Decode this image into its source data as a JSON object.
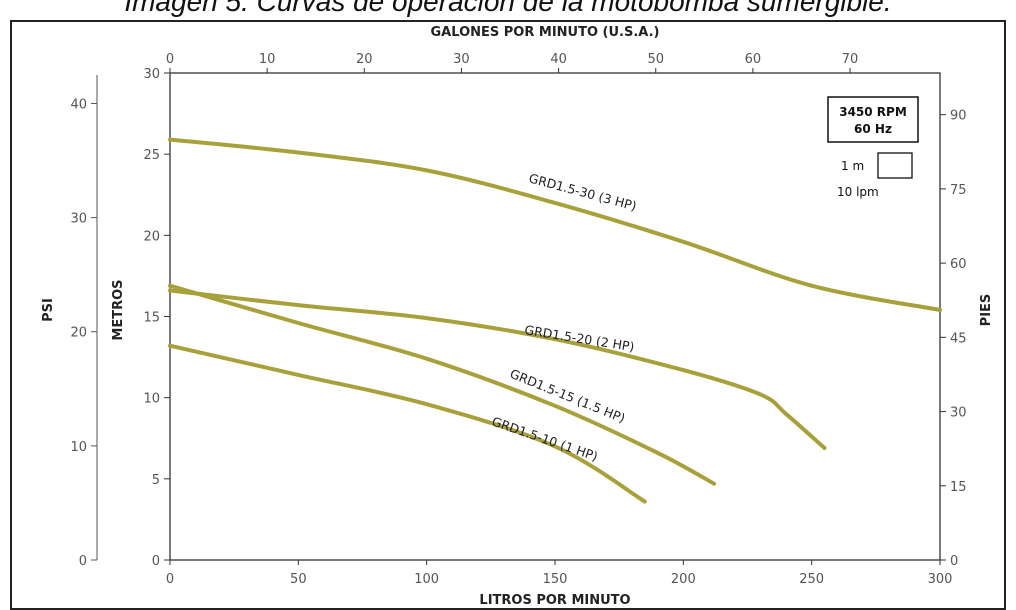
{
  "caption": "Imagen 5. Curvas de operación de la motobomba sumergible.",
  "chart_data": {
    "type": "line",
    "x_bottom": {
      "label": "LITROS POR MINUTO",
      "range": [
        0,
        300
      ],
      "ticks": [
        0,
        50,
        100,
        150,
        200,
        250,
        300
      ]
    },
    "x_top": {
      "label": "GALONES POR MINUTO (U.S.A.)",
      "ticks": [
        0,
        10,
        20,
        30,
        40,
        50,
        60,
        70
      ]
    },
    "y_left_inner": {
      "label": "METROS",
      "range": [
        0,
        30
      ],
      "ticks": [
        0,
        5,
        10,
        15,
        20,
        25,
        30
      ]
    },
    "y_left_outer": {
      "label": "PSI",
      "ticks": [
        0,
        10,
        20,
        30,
        40
      ]
    },
    "y_right": {
      "label": "PIES",
      "ticks": [
        0,
        15,
        30,
        45,
        60,
        75,
        90
      ]
    },
    "legend": {
      "rpm": "3450 RPM",
      "hz": "60 Hz",
      "scale_v": "1 m",
      "scale_h": "10 lpm",
      "position": "top-right"
    },
    "series": [
      {
        "name": "GRD1.5-30 (3 HP)",
        "color": "#a8a03a",
        "points": [
          [
            0,
            25.9
          ],
          [
            50,
            25.1
          ],
          [
            100,
            24.0
          ],
          [
            150,
            22.0
          ],
          [
            200,
            19.6
          ],
          [
            250,
            16.9
          ],
          [
            300,
            15.4
          ]
        ]
      },
      {
        "name": "GRD1.5-20 (2 HP)",
        "color": "#a8a03a",
        "points": [
          [
            0,
            16.6
          ],
          [
            50,
            15.7
          ],
          [
            100,
            14.9
          ],
          [
            150,
            13.6
          ],
          [
            200,
            11.7
          ],
          [
            230,
            10.2
          ],
          [
            240,
            9.0
          ],
          [
            255,
            6.9
          ]
        ]
      },
      {
        "name": "GRD1.5-15 (1.5 HP)",
        "color": "#a8a03a",
        "points": [
          [
            0,
            16.9
          ],
          [
            50,
            14.6
          ],
          [
            100,
            12.4
          ],
          [
            150,
            9.5
          ],
          [
            190,
            6.6
          ],
          [
            212,
            4.7
          ]
        ]
      },
      {
        "name": "GRD1.5-10 (1 HP)",
        "color": "#a8a03a",
        "points": [
          [
            0,
            13.2
          ],
          [
            50,
            11.4
          ],
          [
            100,
            9.6
          ],
          [
            150,
            7.0
          ],
          [
            185,
            3.6
          ]
        ]
      }
    ]
  }
}
